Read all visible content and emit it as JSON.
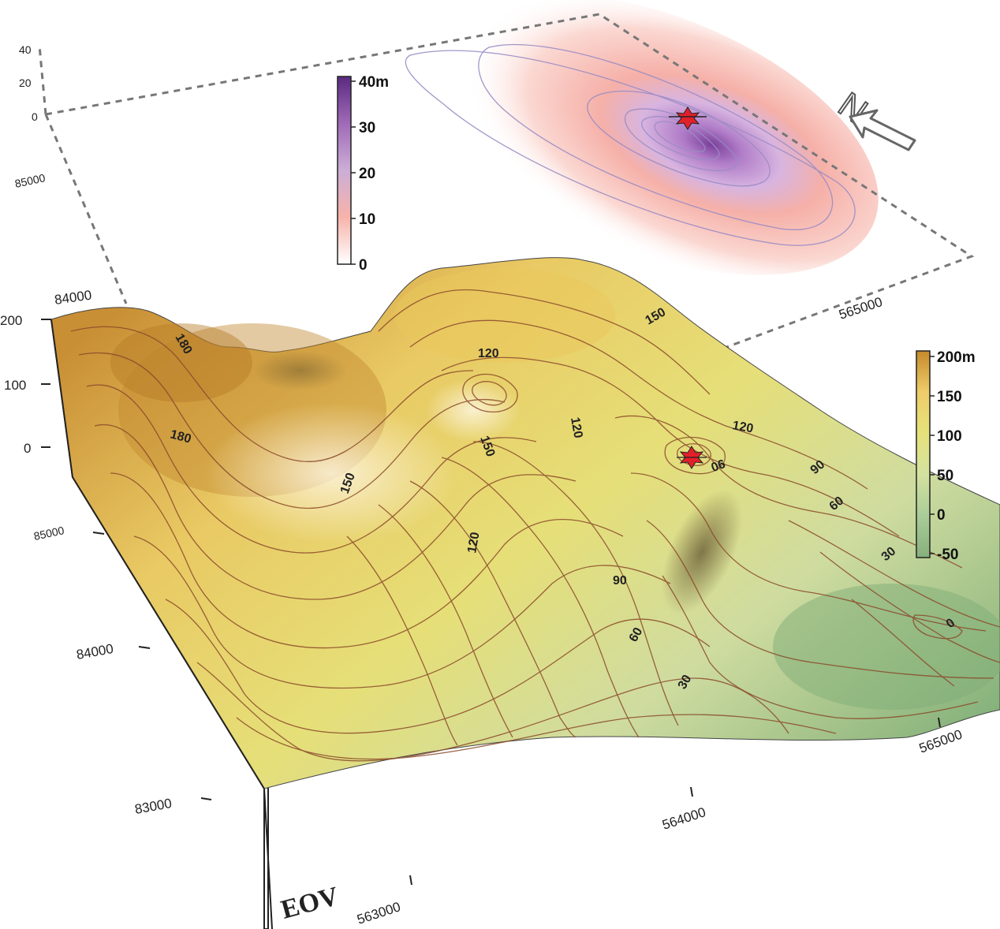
{
  "label": "EOV",
  "north_label": "N",
  "upper_surface": {
    "z_axis": [
      "0",
      "20",
      "40"
    ],
    "y_axis": [
      "84000",
      "85000"
    ],
    "x_axis": [
      "565000"
    ],
    "colorbar": {
      "ticks": [
        "0",
        "10",
        "20",
        "30",
        "40m"
      ],
      "colors": [
        "#ffffff",
        "#f7b3aa",
        "#ccaed6",
        "#a06ab8",
        "#5a2a80"
      ]
    }
  },
  "lower_surface": {
    "z_axis": [
      "0",
      "100",
      "200"
    ],
    "y_axis": [
      "83000",
      "84000",
      "85000"
    ],
    "x_axis": [
      "563000",
      "564000",
      "565000"
    ],
    "contour_labels": [
      "180",
      "180",
      "150",
      "150",
      "150",
      "120",
      "120",
      "120",
      "120",
      "90",
      "90",
      "90",
      "60",
      "60",
      "30",
      "30",
      "0"
    ],
    "colorbar": {
      "ticks": [
        "200m",
        "150",
        "100",
        "50",
        "0",
        "-50"
      ],
      "colors": [
        "#c68a2a",
        "#eecd6a",
        "#e6e27a",
        "#d4e2a0",
        "#a9cc98",
        "#86b07c"
      ]
    }
  },
  "marker_color": "#e2202a"
}
